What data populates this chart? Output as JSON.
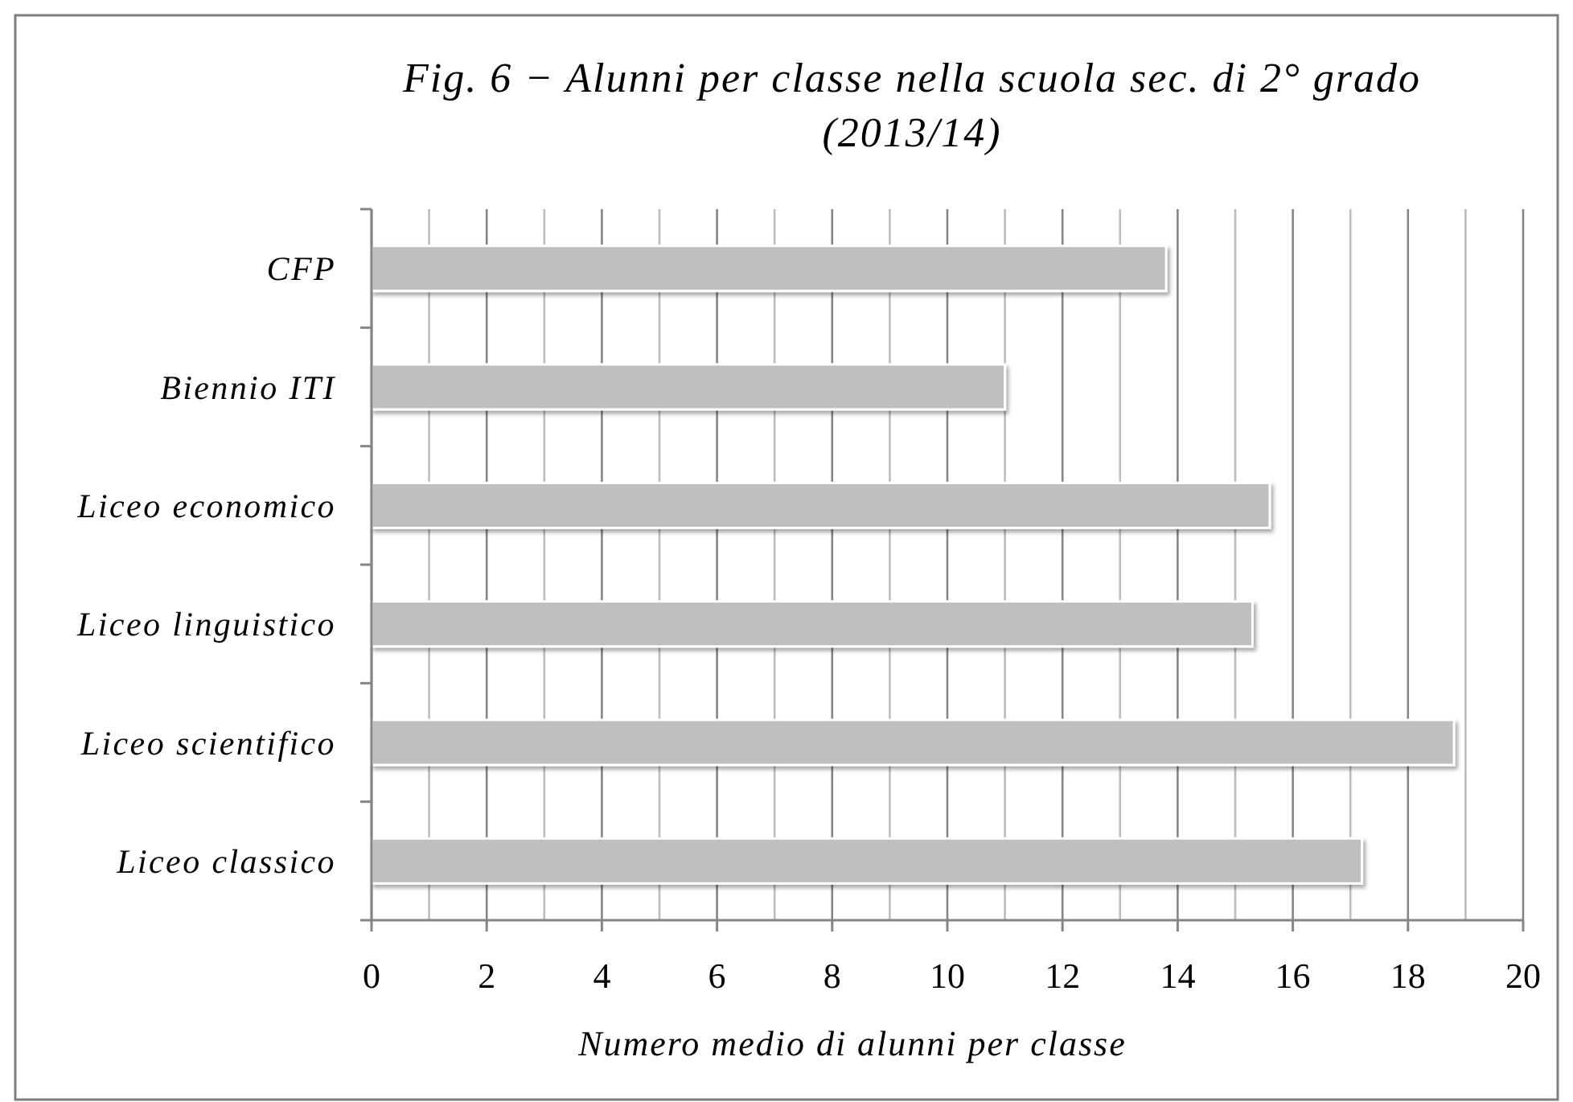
{
  "chart_data": {
    "type": "bar",
    "orientation": "horizontal",
    "title": "Fig. 6 − Alunni per classe nella scuola sec. di 2° grado (2013/14)",
    "xlabel": "Numero medio di alunni per classe",
    "categories": [
      "CFP",
      "Biennio ITI",
      "Liceo economico",
      "Liceo linguistico",
      "Liceo scientifico",
      "Liceo classico"
    ],
    "values": [
      13.8,
      11.0,
      15.6,
      15.3,
      18.8,
      17.2
    ],
    "color": "#bfbfbf",
    "xlim": [
      0,
      20
    ],
    "xticks": [
      0,
      {
        "value": 1,
        "label": null
      },
      2,
      {
        "value": 3,
        "label": null
      },
      4,
      {
        "value": 5,
        "label": null
      },
      6,
      {
        "value": 7,
        "label": null
      },
      8,
      {
        "value": 9,
        "label": null
      },
      10,
      {
        "value": 11,
        "label": null
      },
      12,
      {
        "value": 13,
        "label": null
      },
      14,
      {
        "value": 15,
        "label": null
      },
      16,
      {
        "value": 17,
        "label": null
      },
      18,
      {
        "value": 19,
        "label": null
      },
      20
    ],
    "grid": "x"
  }
}
